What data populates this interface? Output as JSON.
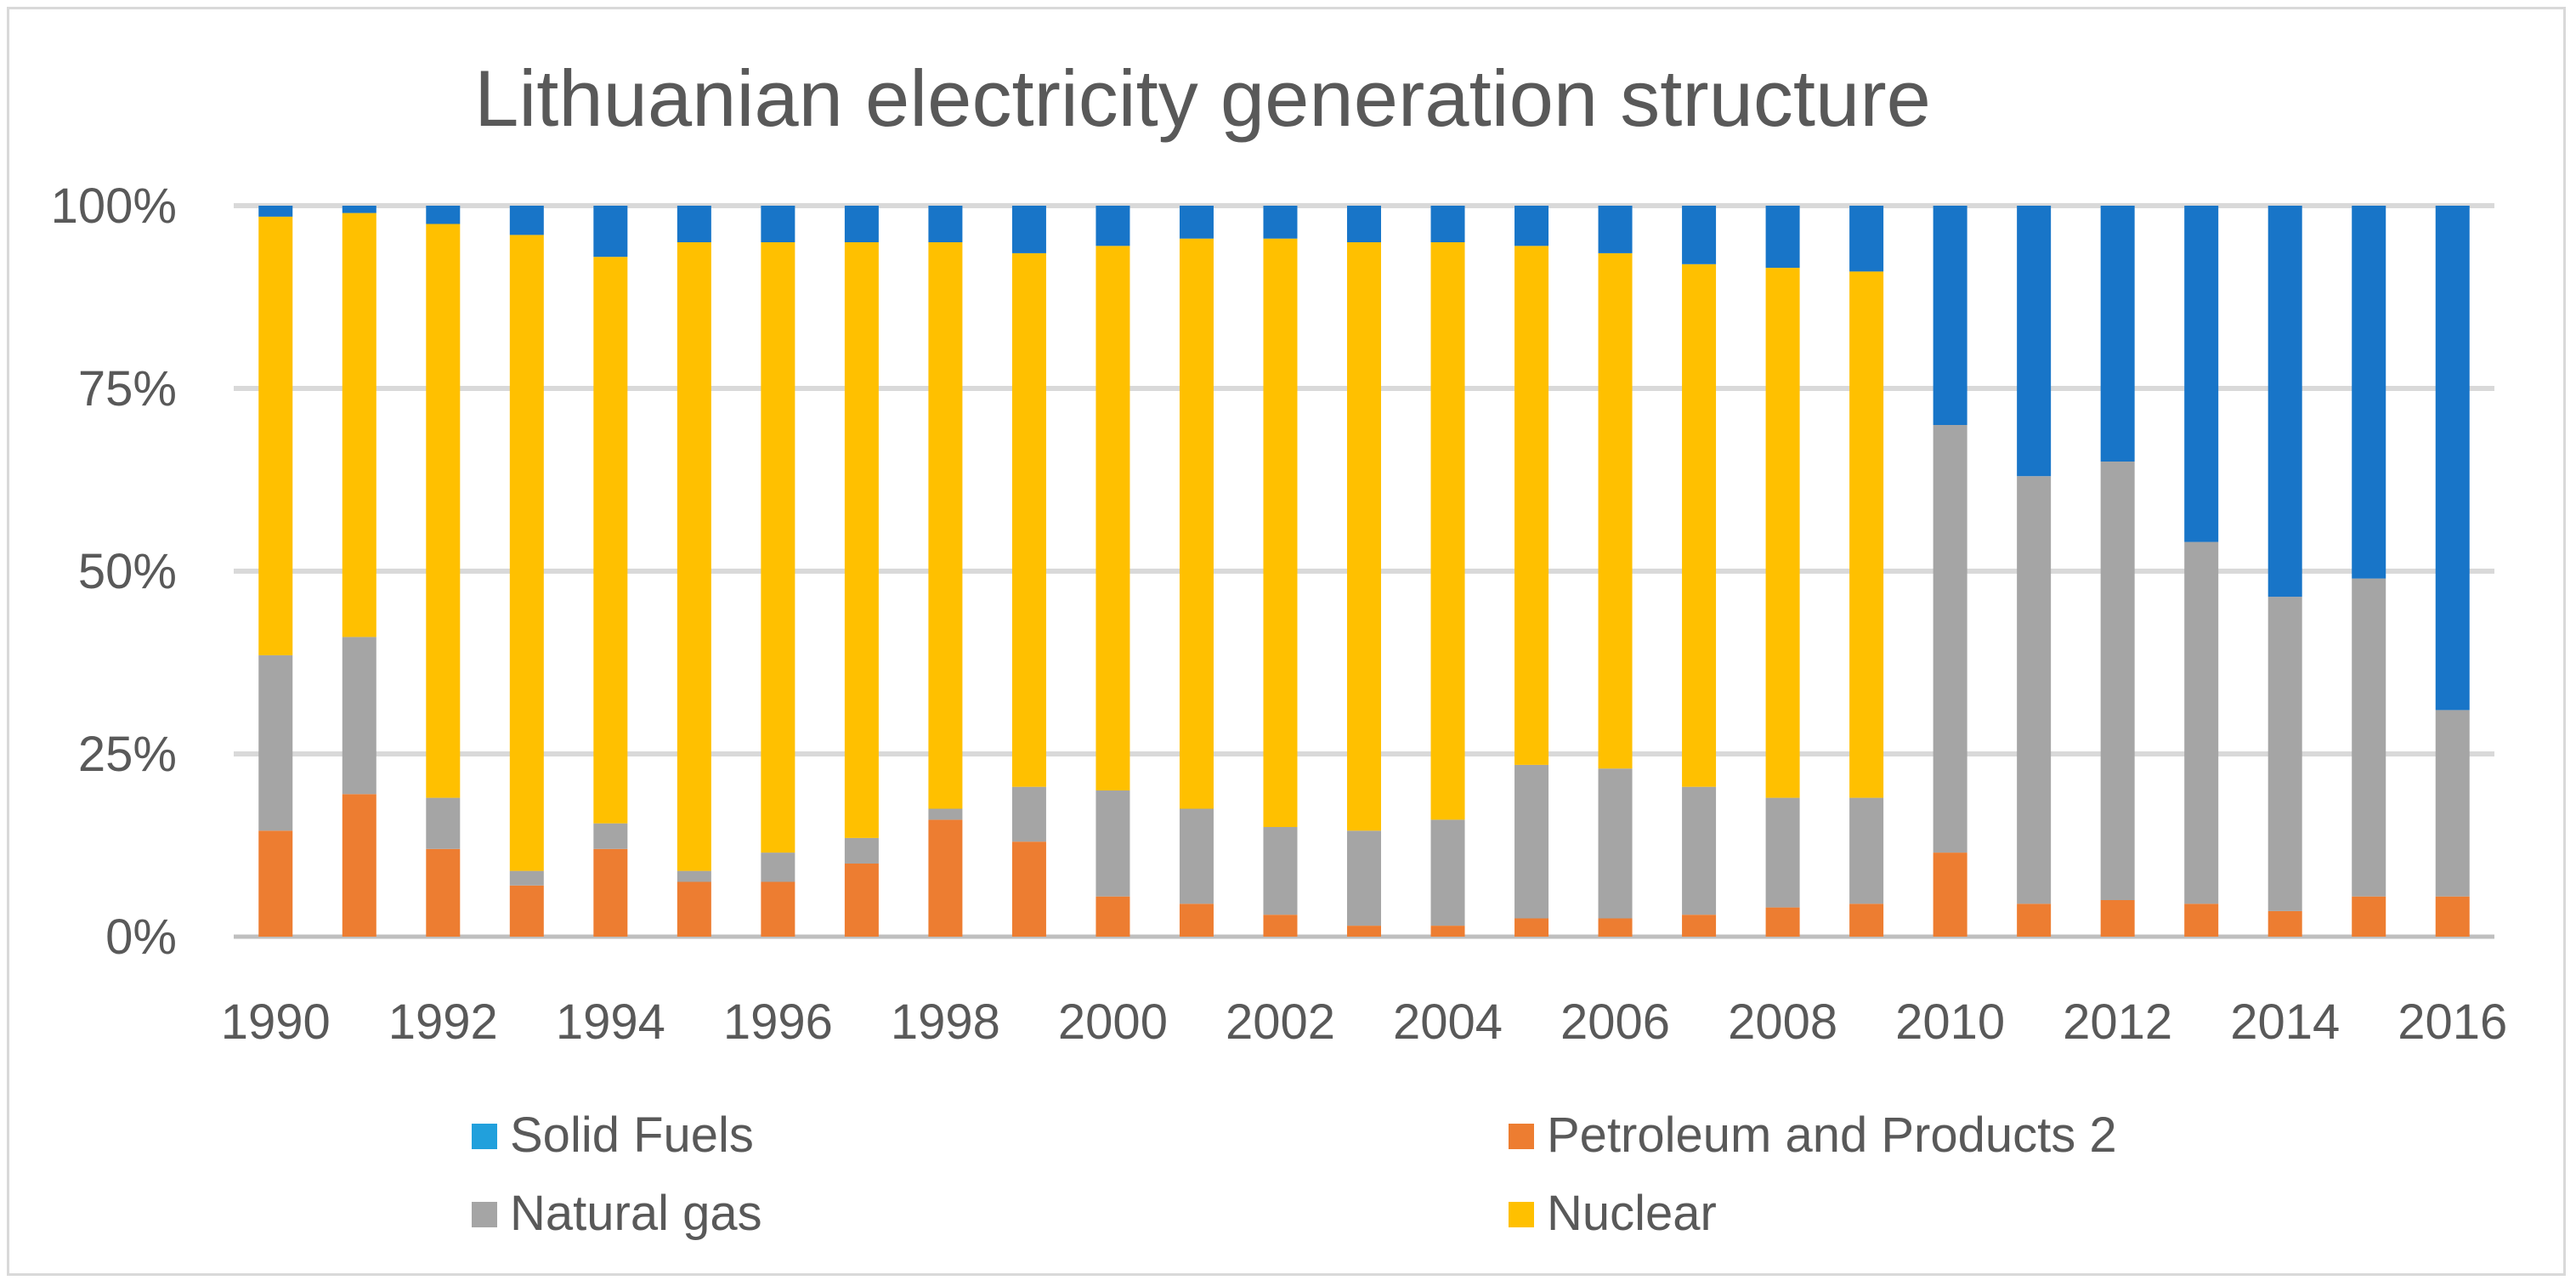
{
  "chart_data": {
    "type": "bar",
    "stacked": true,
    "title": "Lithuanian electricity generation structure",
    "xlabel": "",
    "ylabel": "",
    "ylim": [
      0,
      100
    ],
    "y_ticks": [
      "0%",
      "25%",
      "50%",
      "75%",
      "100%"
    ],
    "y_tick_values": [
      0,
      25,
      50,
      75,
      100
    ],
    "grid": true,
    "legend_position": "bottom",
    "categories": [
      "1990",
      "1991",
      "1992",
      "1993",
      "1994",
      "1995",
      "1996",
      "1997",
      "1998",
      "1999",
      "2000",
      "2001",
      "2002",
      "2003",
      "2004",
      "2005",
      "2006",
      "2007",
      "2008",
      "2009",
      "2010",
      "2011",
      "2012",
      "2013",
      "2014",
      "2015",
      "2016"
    ],
    "x_tick_labels": [
      "1990",
      "1992",
      "1994",
      "1996",
      "1998",
      "2000",
      "2002",
      "2004",
      "2006",
      "2008",
      "2010",
      "2012",
      "2014",
      "2016"
    ],
    "series": [
      {
        "name": "Petroleum and Products  2",
        "color": "#ED7D31",
        "values": [
          14.5,
          19.5,
          12,
          7,
          12,
          7.5,
          7.5,
          10,
          16,
          13,
          5.5,
          4.5,
          3,
          1.5,
          1.5,
          2.5,
          2.5,
          3,
          4,
          4.5,
          11.5,
          4.5,
          5,
          4.5,
          3.5,
          5.5,
          5.5
        ]
      },
      {
        "name": "Natural gas",
        "color": "#A5A5A5",
        "values": [
          24,
          21.5,
          7,
          2,
          3.5,
          1.5,
          4,
          3.5,
          1.5,
          7.5,
          14.5,
          13,
          12,
          13,
          14.5,
          21,
          20.5,
          17.5,
          15,
          14.5,
          58.5,
          58.5,
          60,
          49.5,
          43,
          43.5,
          25.5
        ]
      },
      {
        "name": "Nuclear",
        "color": "#FFC000",
        "values": [
          60,
          58,
          78.5,
          87,
          77.5,
          86,
          83.5,
          81.5,
          77.5,
          73,
          74.5,
          78,
          80.5,
          80.5,
          79,
          71,
          70.5,
          71.5,
          72.5,
          72,
          0,
          0,
          0,
          0,
          0,
          0,
          0
        ]
      },
      {
        "name": "Solid Fuels",
        "color": "#1875C8",
        "legend_color": "#21A0DC",
        "values": [
          1.5,
          1,
          2.5,
          4,
          7,
          5,
          5,
          5,
          5,
          6.5,
          5.5,
          4.5,
          4.5,
          5,
          5,
          5.5,
          6.5,
          8,
          8.5,
          9,
          30,
          37,
          35,
          46,
          53.5,
          51,
          69
        ]
      }
    ],
    "legend": [
      {
        "label": "Solid Fuels",
        "series": 3
      },
      {
        "label": "Petroleum and Products  2",
        "series": 0
      },
      {
        "label": "Natural gas",
        "series": 1
      },
      {
        "label": "Nuclear",
        "series": 2
      }
    ]
  }
}
